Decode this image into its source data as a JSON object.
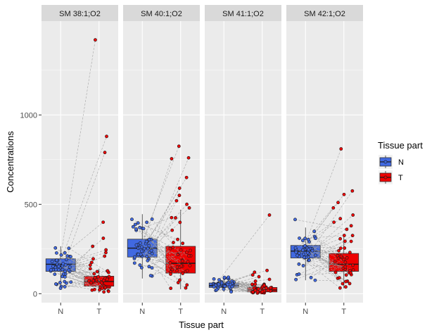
{
  "chart_data": {
    "type": "boxplot",
    "xlabel": "Tissue part",
    "ylabel": "Concentrations",
    "ylim": [
      -50,
      1525
    ],
    "yticks": [
      0,
      500,
      1000
    ],
    "categories": [
      "N",
      "T"
    ],
    "legend": {
      "title": "Tissue part",
      "position": "right",
      "items": [
        {
          "label": "N",
          "color": "#4169E1"
        },
        {
          "label": "T",
          "color": "#EE0000"
        }
      ]
    },
    "panels": [
      {
        "title": "SM 38:1;O2",
        "boxes": {
          "N": {
            "q1": 125,
            "median": 165,
            "q3": 195,
            "whisker_low": 30,
            "whisker_high": 265
          },
          "T": {
            "q1": 42,
            "median": 68,
            "q3": 98,
            "whisker_low": 5,
            "whisker_high": 140
          }
        },
        "outliers": {
          "N": [],
          "T": [
            1420,
            880,
            790,
            400,
            310,
            265,
            245,
            230,
            210,
            195,
            175,
            160
          ]
        }
      },
      {
        "title": "SM 40:1;O2",
        "boxes": {
          "N": {
            "q1": 205,
            "median": 255,
            "q3": 305,
            "whisker_low": 85,
            "whisker_high": 445
          },
          "T": {
            "q1": 115,
            "median": 170,
            "q3": 265,
            "whisker_low": 25,
            "whisker_high": 470
          }
        },
        "outliers": {
          "N": [],
          "T": [
            825,
            760,
            755,
            650,
            590,
            550,
            520,
            500,
            480
          ]
        }
      },
      {
        "title": "SM 41:1;O2",
        "boxes": {
          "N": {
            "q1": 35,
            "median": 45,
            "q3": 60,
            "whisker_low": 10,
            "whisker_high": 95
          },
          "T": {
            "q1": 10,
            "median": 20,
            "q3": 35,
            "whisker_low": 2,
            "whisker_high": 55
          }
        },
        "outliers": {
          "N": [],
          "T": [
            440,
            130,
            120,
            105,
            95,
            80,
            70
          ]
        }
      },
      {
        "title": "SM 42:1;O2",
        "boxes": {
          "N": {
            "q1": 200,
            "median": 238,
            "q3": 270,
            "whisker_low": 75,
            "whisker_high": 370
          },
          "T": {
            "q1": 125,
            "median": 165,
            "q3": 225,
            "whisker_low": 30,
            "whisker_high": 330
          }
        },
        "outliers": {
          "N": [
            415
          ],
          "T": [
            810,
            575,
            555,
            510,
            480,
            440,
            420,
            400,
            380,
            360
          ]
        }
      }
    ]
  }
}
